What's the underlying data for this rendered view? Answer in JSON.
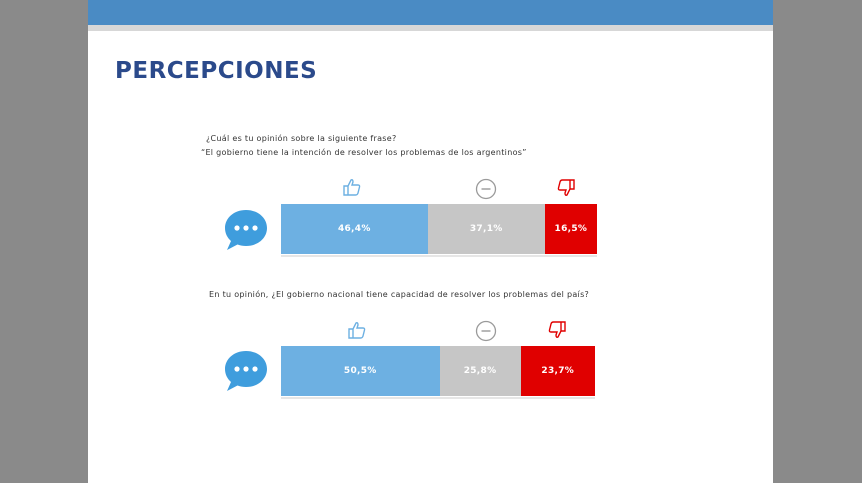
{
  "title": "PERCEPCIONES",
  "colors": {
    "positive": "#6db0e2",
    "neutral": "#c6c6c6",
    "negative": "#e00000",
    "title": "#2b4a8b",
    "band": "#4a8bc4"
  },
  "icons": {
    "positive": "thumbs-up-icon",
    "neutral": "minus-circle-icon",
    "negative": "thumbs-down-icon",
    "bubble": "speech-bubble-icon"
  },
  "chart_data": [
    {
      "type": "bar",
      "orientation": "horizontal-stacked",
      "question_line1": "¿Cuál es tu opinión sobre la siguiente frase?",
      "question_line2": "“El gobierno tiene la intención de resolver los problemas de los argentinos”",
      "series": [
        {
          "values": [
            46.4
          ],
          "label": "46,4%",
          "color": "#6db0e2"
        },
        {
          "values": [
            37.1
          ],
          "label": "37,1%",
          "color": "#c6c6c6"
        },
        {
          "values": [
            16.5
          ],
          "label": "16,5%",
          "color": "#e00000"
        }
      ]
    },
    {
      "type": "bar",
      "orientation": "horizontal-stacked",
      "question_line1": "En tu opinión, ¿El gobierno nacional tiene capacidad de resolver los problemas del país?",
      "series": [
        {
          "values": [
            50.5
          ],
          "label": "50,5%",
          "color": "#6db0e2"
        },
        {
          "values": [
            25.8
          ],
          "label": "25,8%",
          "color": "#c6c6c6"
        },
        {
          "values": [
            23.7
          ],
          "label": "23,7%",
          "color": "#e00000"
        }
      ]
    }
  ]
}
